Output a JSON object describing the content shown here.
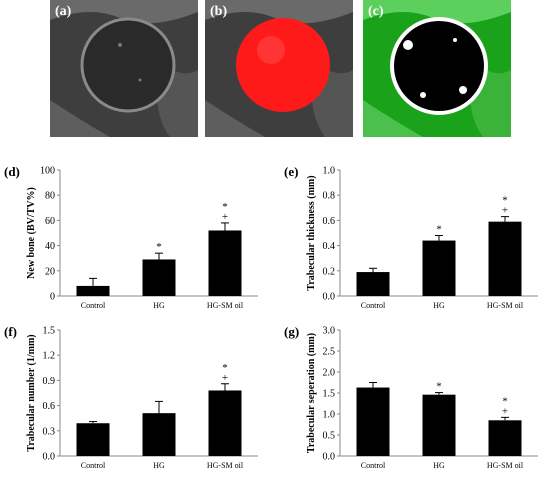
{
  "images": [
    {
      "label": "(a)"
    },
    {
      "label": "(b)"
    },
    {
      "label": "(c)"
    }
  ],
  "colors": {
    "bar": "#000000",
    "overlay_red": "#ff1a1a",
    "overlay_green": "#1aa31a"
  },
  "chart_data": [
    {
      "type": "bar",
      "label": "(d)",
      "ylabel": "New bone (BV/TV%)",
      "categories": [
        "Control",
        "HG",
        "HG-SM oil"
      ],
      "values": [
        8,
        29,
        52
      ],
      "errors": [
        6,
        5,
        6
      ],
      "ylim": [
        0,
        100
      ],
      "yticks": [
        "0",
        "20",
        "40",
        "60",
        "80",
        "100"
      ],
      "significance": [
        [],
        [
          "*"
        ],
        [
          "*",
          "+"
        ]
      ]
    },
    {
      "type": "bar",
      "label": "(e)",
      "ylabel": "Trabecular thickness (mm)",
      "categories": [
        "Control",
        "HG",
        "HG-SM oil"
      ],
      "values": [
        0.19,
        0.44,
        0.59
      ],
      "errors": [
        0.03,
        0.04,
        0.04
      ],
      "ylim": [
        0,
        1.0
      ],
      "yticks": [
        "0.0",
        "0.2",
        "0.4",
        "0.6",
        "0.8",
        "1.0"
      ],
      "significance": [
        [],
        [
          "*"
        ],
        [
          "*",
          "+"
        ]
      ]
    },
    {
      "type": "bar",
      "label": "(f)",
      "ylabel": "Trabecular number (1/mm)",
      "categories": [
        "Control",
        "HG",
        "HG-SM oil"
      ],
      "values": [
        0.39,
        0.51,
        0.78
      ],
      "errors": [
        0.02,
        0.14,
        0.08
      ],
      "ylim": [
        0,
        1.5
      ],
      "yticks": [
        "0.0",
        "0.3",
        "0.6",
        "0.9",
        "1.2",
        "1.5"
      ],
      "significance": [
        [],
        [],
        [
          "*",
          "+"
        ]
      ]
    },
    {
      "type": "bar",
      "label": "(g)",
      "ylabel": "Trabecular seperation (mm)",
      "categories": [
        "Control",
        "HG",
        "HG-SM oil"
      ],
      "values": [
        1.63,
        1.46,
        0.85
      ],
      "errors": [
        0.12,
        0.05,
        0.07
      ],
      "ylim": [
        0,
        3.0
      ],
      "yticks": [
        "0.0",
        "0.5",
        "1.0",
        "1.5",
        "2.0",
        "2.5",
        "3.0"
      ],
      "significance": [
        [],
        [
          "*"
        ],
        [
          "*",
          "+"
        ]
      ]
    }
  ]
}
